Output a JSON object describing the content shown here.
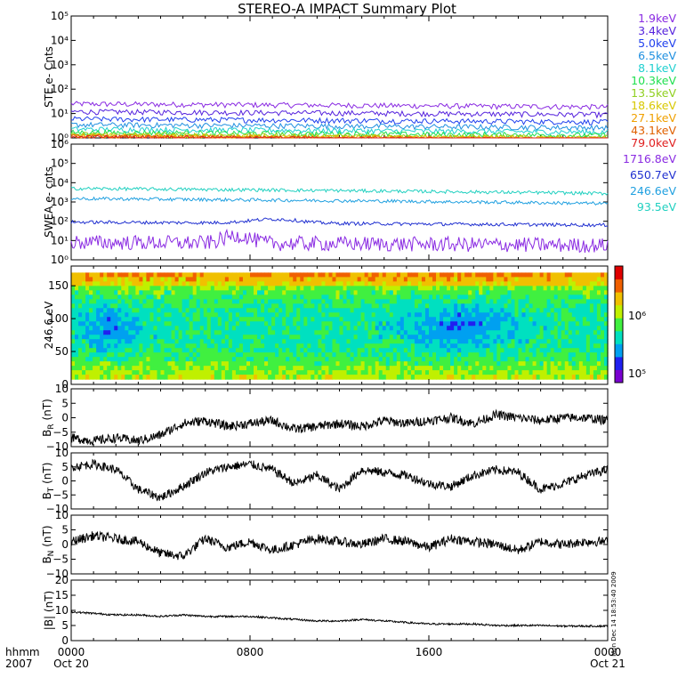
{
  "title": "STEREO-A IMPACT Summary Plot",
  "footer": {
    "row1": "hhmm",
    "row2": "2007",
    "ticks": [
      "0000",
      "0800",
      "1600",
      "0000"
    ],
    "dates": [
      "Oct 20",
      "",
      "",
      "Oct 21"
    ]
  },
  "stamp": "Mon Dec 14 18:53:40 2009",
  "colors": {
    "ste": [
      "#8a2be2",
      "#5522dd",
      "#2040ee",
      "#2090e0",
      "#20d0d0",
      "#20e050",
      "#90d020",
      "#d8c800",
      "#f0a000",
      "#e06000",
      "#e02020"
    ],
    "swea": [
      "#8a2be2",
      "#2030d0",
      "#20a0e0",
      "#20d0c0"
    ],
    "spectrogram_scale": [
      "#7a00d0",
      "#2020f0",
      "#00a0f0",
      "#00e0c0",
      "#40f040",
      "#c0f000",
      "#f0c000",
      "#f06000",
      "#e00000"
    ]
  },
  "chart_data": [
    {
      "panel": "ste",
      "type": "line",
      "ylabel": "STE e- Cnts",
      "yscale": "log",
      "ylim": [
        1,
        100000
      ],
      "yticks": [
        "10⁰",
        "10¹",
        "10²",
        "10³",
        "10⁴",
        "10⁵"
      ],
      "series": [
        {
          "name": "1.9keV",
          "level": 25
        },
        {
          "name": "3.4keV",
          "level": 12
        },
        {
          "name": "5.0keV",
          "level": 6
        },
        {
          "name": "6.5keV",
          "level": 3.5
        },
        {
          "name": "8.1keV",
          "level": 2.3
        },
        {
          "name": "10.3keV",
          "level": 1.7
        },
        {
          "name": "13.5keV",
          "level": 1.4
        },
        {
          "name": "18.6keV",
          "level": 1.25
        },
        {
          "name": "27.1keV",
          "level": 1.15
        },
        {
          "name": "43.1keV",
          "level": 1.1
        },
        {
          "name": "79.0keV",
          "level": 1.05
        }
      ]
    },
    {
      "panel": "swea",
      "type": "line",
      "ylabel": "SWEA e- cnts",
      "yscale": "log",
      "ylim": [
        1,
        1000000
      ],
      "yticks": [
        "10⁰",
        "10¹",
        "10²",
        "10³",
        "10⁴",
        "10⁵",
        "10⁶"
      ],
      "series": [
        {
          "name": "1716.8eV",
          "level": 8
        },
        {
          "name": "650.7eV",
          "level": 90
        },
        {
          "name": "246.6eV",
          "level": 1500
        },
        {
          "name": "93.5eV",
          "level": 5000
        }
      ]
    },
    {
      "panel": "pad",
      "type": "heatmap",
      "ylabel": "246.6 eV",
      "ylim": [
        0,
        180
      ],
      "yticks": [
        "0",
        "50",
        "100",
        "150"
      ],
      "colorbar_ticks": [
        "10⁵",
        "10⁶"
      ]
    },
    {
      "panel": "br",
      "type": "line",
      "ylabel": "B",
      "ylabel_sub": "R",
      "ylabel_unit": "(nT)",
      "ylim": [
        -10,
        10
      ],
      "yticks": [
        "−10",
        "−5",
        "0",
        "5",
        "10"
      ],
      "hours": [
        0,
        1,
        2,
        3,
        4,
        5,
        6,
        7,
        8,
        9,
        10,
        11,
        12,
        13,
        14,
        15,
        16,
        17,
        18,
        19,
        20,
        21,
        22,
        23,
        24
      ],
      "values": [
        -7,
        -8,
        -7,
        -8,
        -6,
        -2,
        -1,
        -3,
        -2,
        -1,
        -4,
        -3,
        -2,
        -3,
        -1,
        -2,
        -1,
        0,
        -2,
        1,
        0,
        -1,
        0,
        0,
        -1
      ]
    },
    {
      "panel": "bt",
      "type": "line",
      "ylabel": "B",
      "ylabel_sub": "T",
      "ylabel_unit": "(nT)",
      "ylim": [
        -10,
        10
      ],
      "yticks": [
        "−10",
        "−5",
        "0",
        "5",
        "10"
      ],
      "hours": [
        0,
        1,
        2,
        3,
        4,
        5,
        6,
        7,
        8,
        9,
        10,
        11,
        12,
        13,
        14,
        15,
        16,
        17,
        18,
        19,
        20,
        21,
        22,
        23,
        24
      ],
      "values": [
        5,
        6,
        4,
        -3,
        -6,
        -2,
        3,
        5,
        6,
        4,
        -1,
        2,
        -3,
        4,
        3,
        2,
        -1,
        -2,
        2,
        4,
        3,
        -3,
        -1,
        2,
        4
      ]
    },
    {
      "panel": "bn",
      "type": "line",
      "ylabel": "B",
      "ylabel_sub": "N",
      "ylabel_unit": "(nT)",
      "ylim": [
        -10,
        10
      ],
      "yticks": [
        "−10",
        "−5",
        "0",
        "5",
        "10"
      ],
      "hours": [
        0,
        1,
        2,
        3,
        4,
        5,
        6,
        7,
        8,
        9,
        10,
        11,
        12,
        13,
        14,
        15,
        16,
        17,
        18,
        19,
        20,
        21,
        22,
        23,
        24
      ],
      "values": [
        1,
        3,
        2,
        1,
        -3,
        -4,
        2,
        -1,
        1,
        -2,
        0,
        2,
        1,
        0,
        2,
        1,
        -1,
        2,
        1,
        0,
        -2,
        1,
        0,
        1,
        1
      ]
    },
    {
      "panel": "bmag",
      "type": "line",
      "ylabel": "|B| (nT)",
      "ylim": [
        0,
        20
      ],
      "yticks": [
        "0",
        "5",
        "10",
        "15",
        "20"
      ],
      "hours": [
        0,
        1,
        2,
        3,
        4,
        5,
        6,
        7,
        8,
        9,
        10,
        11,
        12,
        13,
        14,
        15,
        16,
        17,
        18,
        19,
        20,
        21,
        22,
        23,
        24
      ],
      "values": [
        9.5,
        9,
        8.5,
        8.5,
        8,
        8.5,
        8,
        8,
        8,
        7.5,
        7,
        6.5,
        6.5,
        7,
        6.5,
        6,
        5.5,
        5.5,
        5.5,
        5,
        5,
        5,
        4.8,
        4.8,
        4.8
      ]
    }
  ]
}
